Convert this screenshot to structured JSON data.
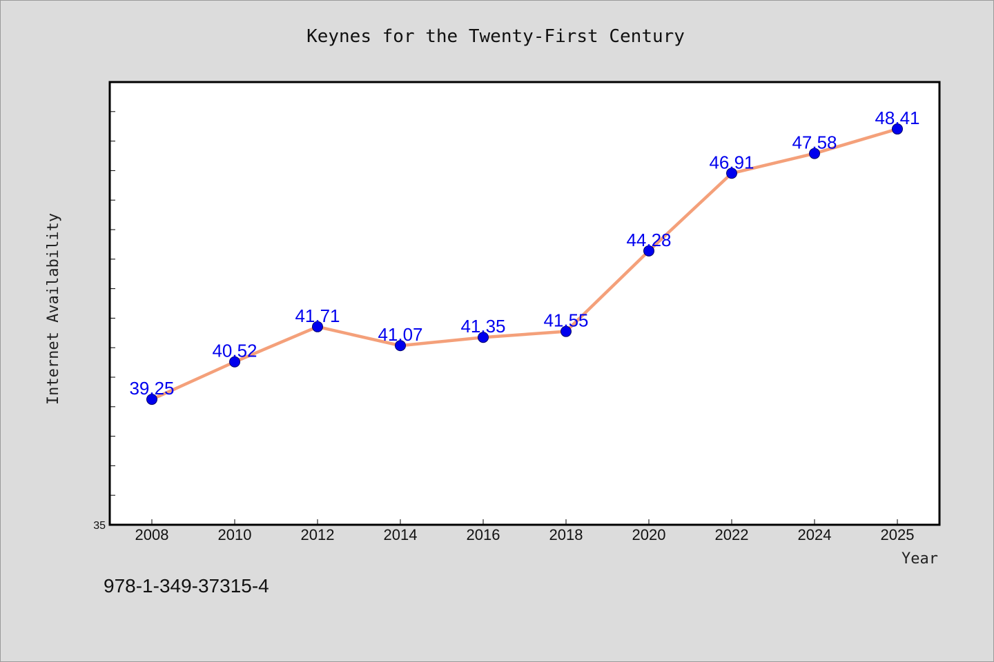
{
  "isbn": "978-1-349-37315-4",
  "chart_data": {
    "type": "line",
    "title": "Keynes for the Twenty-First Century",
    "xlabel": "Year",
    "ylabel": "Internet Availability",
    "x": [
      "2008",
      "2010",
      "2012",
      "2014",
      "2016",
      "2018",
      "2020",
      "2022",
      "2024",
      "2025"
    ],
    "series": [
      {
        "values": [
          39.25,
          40.52,
          41.71,
          41.07,
          41.35,
          41.55,
          44.28,
          46.91,
          47.58,
          48.41
        ],
        "data_labels": [
          "39.25",
          "40.52",
          "41.71",
          "41.07",
          "41.35",
          "41.55",
          "44.28",
          "46.91",
          "47.58",
          "48.41"
        ],
        "line_color": "#f4a07a",
        "marker_color": "#0000ee",
        "label_color": "#0000ee"
      }
    ],
    "ylim": [
      35,
      50
    ],
    "y_tick_labels": [
      "35"
    ],
    "grid": false,
    "legend": "none"
  }
}
